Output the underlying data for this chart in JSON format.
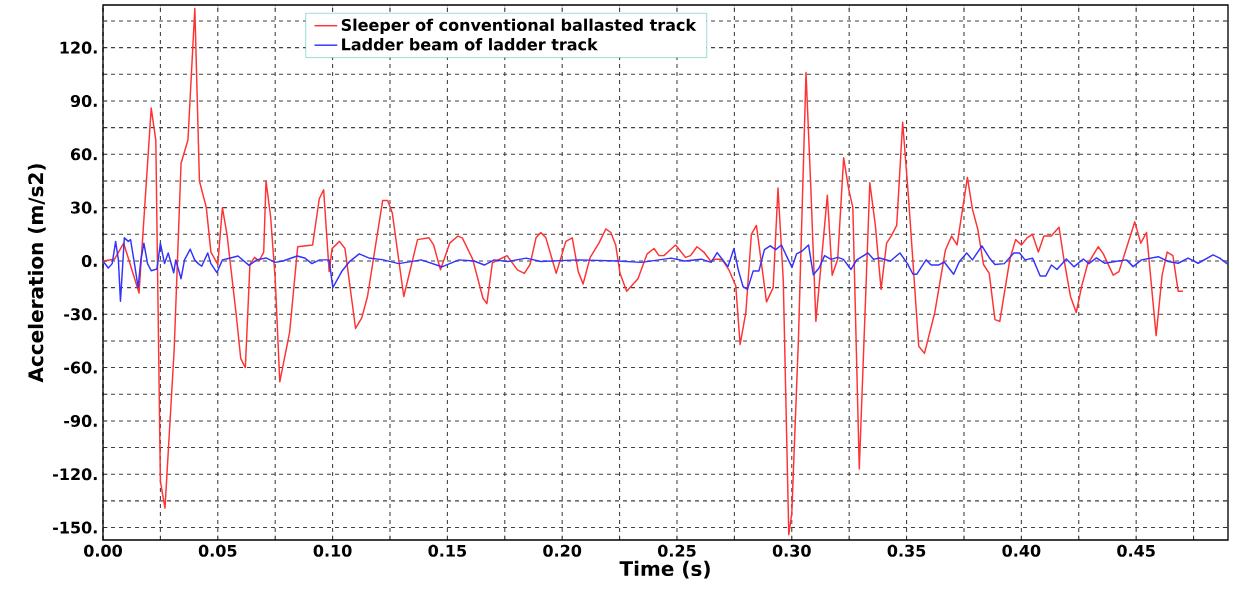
{
  "chart_data": {
    "type": "line",
    "xlabel": "Time (s)",
    "ylabel": "Acceleration (m/s2)",
    "xlim": [
      0,
      0.49
    ],
    "ylim": [
      -157,
      144
    ],
    "xticks": [
      {
        "value": 0,
        "label": "0.00"
      },
      {
        "value": 0.025,
        "label": null
      },
      {
        "value": 0.05,
        "label": "0.05"
      },
      {
        "value": 0.075,
        "label": null
      },
      {
        "value": 0.1,
        "label": "0.10"
      },
      {
        "value": 0.125,
        "label": null
      },
      {
        "value": 0.15,
        "label": "0.15"
      },
      {
        "value": 0.175,
        "label": null
      },
      {
        "value": 0.2,
        "label": "0.20"
      },
      {
        "value": 0.225,
        "label": null
      },
      {
        "value": 0.25,
        "label": "0.25"
      },
      {
        "value": 0.275,
        "label": null
      },
      {
        "value": 0.3,
        "label": "0.30"
      },
      {
        "value": 0.325,
        "label": null
      },
      {
        "value": 0.35,
        "label": "0.35"
      },
      {
        "value": 0.375,
        "label": null
      },
      {
        "value": 0.4,
        "label": "0.40"
      },
      {
        "value": 0.425,
        "label": null
      },
      {
        "value": 0.45,
        "label": "0.45"
      },
      {
        "value": 0.475,
        "label": null
      }
    ],
    "yticks": [
      {
        "value": 135,
        "label": null
      },
      {
        "value": 120,
        "label": "120."
      },
      {
        "value": 105,
        "label": null
      },
      {
        "value": 90,
        "label": "90."
      },
      {
        "value": 75,
        "label": null
      },
      {
        "value": 60,
        "label": "60."
      },
      {
        "value": 45,
        "label": null
      },
      {
        "value": 30,
        "label": "30."
      },
      {
        "value": 15,
        "label": null
      },
      {
        "value": 0,
        "label": "0."
      },
      {
        "value": -15,
        "label": null
      },
      {
        "value": -30,
        "label": "-30."
      },
      {
        "value": -45,
        "label": null
      },
      {
        "value": -60,
        "label": "-60."
      },
      {
        "value": -75,
        "label": null
      },
      {
        "value": -90,
        "label": "-90."
      },
      {
        "value": -105,
        "label": null
      },
      {
        "value": -120,
        "label": "-120."
      },
      {
        "value": -135,
        "label": null
      },
      {
        "value": -150,
        "label": "-150."
      }
    ],
    "grid": true,
    "legend": "top",
    "line_style": "solid",
    "series": [
      {
        "name": "Sleeper of conventional ballasted track",
        "color": "#ff3333",
        "x": [
          0,
          0.005,
          0.009,
          0.0157,
          0.021,
          0.023,
          0.025,
          0.027,
          0.031,
          0.034,
          0.037,
          0.04,
          0.042,
          0.045,
          0.047,
          0.05,
          0.052,
          0.054,
          0.058,
          0.06,
          0.062,
          0.064,
          0.066,
          0.068,
          0.07,
          0.071,
          0.073,
          0.075,
          0.077,
          0.0813,
          0.0848,
          0.0913,
          0.0942,
          0.0961,
          0.0985,
          0.0998,
          0.103,
          0.1054,
          0.11,
          0.1127,
          0.1152,
          0.1218,
          0.124,
          0.126,
          0.131,
          0.137,
          0.142,
          0.144,
          0.147,
          0.151,
          0.1546,
          0.1565,
          0.161,
          0.1655,
          0.1672,
          0.1696,
          0.176,
          0.1805,
          0.1835,
          0.186,
          0.1886,
          0.1907,
          0.1929,
          0.1974,
          0.2016,
          0.2044,
          0.207,
          0.2091,
          0.2122,
          0.216,
          0.219,
          0.2212,
          0.2233,
          0.2252,
          0.2281,
          0.233,
          0.237,
          0.24,
          0.2422,
          0.2443,
          0.2494,
          0.2537,
          0.2559,
          0.2587,
          0.2617,
          0.2646,
          0.2668,
          0.2696,
          0.2726,
          0.2756,
          0.2775,
          0.28,
          0.2824,
          0.2846,
          0.289,
          0.2919,
          0.294,
          0.2963,
          0.2987,
          0.3,
          0.3029,
          0.3062,
          0.3083,
          0.3105,
          0.3155,
          0.3176,
          0.32,
          0.3226,
          0.3247,
          0.3266,
          0.3294,
          0.334,
          0.3364,
          0.3389,
          0.3413,
          0.3433,
          0.3457,
          0.3483,
          0.351,
          0.3553,
          0.3578,
          0.3623,
          0.3669,
          0.3696,
          0.372,
          0.3765,
          0.3787,
          0.381,
          0.3835,
          0.386,
          0.3885,
          0.3906,
          0.395,
          0.3975,
          0.4,
          0.4025,
          0.4048,
          0.4074,
          0.4098,
          0.413,
          0.4164,
          0.4184,
          0.4214,
          0.4239,
          0.4263,
          0.4288,
          0.4335,
          0.4357,
          0.44,
          0.4425,
          0.4445,
          0.4494,
          0.452,
          0.4545,
          0.4587,
          0.4613,
          0.4635,
          0.466,
          0.4683,
          0.4704
        ],
        "values": [
          0,
          1,
          10,
          -18,
          86,
          68,
          -124,
          -139,
          -50,
          55,
          68,
          142,
          45,
          30,
          5,
          -2,
          30,
          15,
          -30,
          -55,
          -60,
          -2,
          2,
          0,
          5,
          45,
          25,
          -10,
          -68,
          -40,
          8,
          9,
          35,
          40,
          -6,
          7,
          11,
          7,
          -38,
          -32,
          -20,
          34,
          34,
          27,
          -20,
          12,
          13,
          9,
          -5,
          10,
          14,
          13,
          1,
          -21,
          -24,
          -1,
          3,
          -5,
          -7,
          -2,
          13,
          16,
          13,
          -7,
          11,
          13,
          -6,
          -13,
          2,
          10,
          18,
          16,
          9,
          -7,
          -17,
          -10,
          4,
          7,
          3,
          3,
          9,
          2,
          3,
          8,
          5,
          0,
          1,
          1,
          -5,
          -14,
          -47,
          -29,
          15,
          20,
          -23,
          -15,
          41,
          -11,
          -154,
          -142,
          -44,
          106,
          41,
          -34,
          37,
          -8,
          1,
          58,
          41,
          30,
          -117,
          44,
          20,
          -16,
          10,
          14,
          20,
          78,
          33,
          -48,
          -52,
          -29,
          6,
          14,
          9,
          47,
          29,
          18,
          -2,
          -7,
          -33,
          -34,
          1,
          12,
          9,
          13,
          15,
          5,
          14,
          14,
          19,
          2,
          -20,
          -29,
          -14,
          -2,
          8,
          4,
          -8,
          -6,
          2,
          22,
          10,
          16,
          -42,
          -8,
          5,
          3,
          -17,
          -17
        ]
      },
      {
        "name": "Ladder beam of ladder track",
        "color": "#3333ff",
        "x": [
          0,
          0.0023,
          0.004,
          0.0055,
          0.0067,
          0.0076,
          0.0093,
          0.011,
          0.012,
          0.0137,
          0.0153,
          0.0165,
          0.0178,
          0.0194,
          0.021,
          0.0235,
          0.025,
          0.0268,
          0.0284,
          0.0308,
          0.0317,
          0.034,
          0.0355,
          0.038,
          0.0399,
          0.0415,
          0.043,
          0.0456,
          0.047,
          0.0496,
          0.052,
          0.0555,
          0.0588,
          0.0636,
          0.0669,
          0.071,
          0.075,
          0.0784,
          0.0846,
          0.0878,
          0.091,
          0.0944,
          0.0985,
          0.1001,
          0.1042,
          0.1075,
          0.1116,
          0.1157,
          0.1222,
          0.1288,
          0.1386,
          0.1476,
          0.155,
          0.1616,
          0.1661,
          0.1704,
          0.1763,
          0.1843,
          0.1907,
          0.207,
          0.2243,
          0.2345,
          0.2475,
          0.2533,
          0.2606,
          0.2649,
          0.2675,
          0.2722,
          0.2748,
          0.2767,
          0.2788,
          0.2807,
          0.2832,
          0.2857,
          0.2881,
          0.2906,
          0.293,
          0.2955,
          0.298,
          0.3001,
          0.3021,
          0.3045,
          0.3073,
          0.3094,
          0.3119,
          0.3143,
          0.3171,
          0.32,
          0.3225,
          0.3258,
          0.3283,
          0.3332,
          0.3356,
          0.3381,
          0.343,
          0.3471,
          0.3504,
          0.3528,
          0.3544,
          0.3585,
          0.3607,
          0.3639,
          0.3664,
          0.3705,
          0.3729,
          0.3762,
          0.3787,
          0.3828,
          0.3861,
          0.3885,
          0.3926,
          0.3967,
          0.3992,
          0.4016,
          0.4049,
          0.4082,
          0.4106,
          0.4131,
          0.4155,
          0.4196,
          0.4229,
          0.427,
          0.4294,
          0.4327,
          0.4364,
          0.4422,
          0.4458,
          0.4487,
          0.4523,
          0.4596,
          0.464,
          0.4683,
          0.4726,
          0.477,
          0.4835,
          0.4864,
          0.49
        ],
        "values": [
          0,
          -4,
          -1.5,
          11,
          0.6,
          -22.7,
          13,
          11,
          12,
          -1.5,
          -15,
          0.6,
          10,
          -1.5,
          -5.5,
          -4.5,
          10,
          -1.5,
          4.5,
          -6.6,
          0.6,
          -10,
          0.6,
          6.6,
          0.6,
          -1.5,
          -3,
          4.5,
          -1.5,
          -6.6,
          0.6,
          1.7,
          2.8,
          -2.5,
          0.6,
          1.7,
          -0.8,
          0,
          2.8,
          1.7,
          -1.5,
          0.6,
          0.6,
          -15,
          -5.5,
          -0.2,
          4,
          1.7,
          0.6,
          -1.5,
          0.6,
          -3.3,
          0.6,
          0,
          -2.3,
          0.6,
          -0.3,
          1.6,
          -0.3,
          0.6,
          0,
          -0.8,
          1.6,
          0,
          1,
          -0.8,
          4.7,
          -3.2,
          7,
          -5,
          -14.5,
          -16,
          -5.6,
          -5.6,
          6.4,
          8.5,
          6.4,
          9,
          2,
          -3.6,
          4,
          5.6,
          9,
          -7.8,
          -4,
          3,
          0.9,
          2,
          0.9,
          -4.8,
          0.6,
          4.5,
          0.9,
          1.7,
          0,
          4.5,
          -1.5,
          -7.5,
          -7.5,
          0.6,
          -2.3,
          -2.3,
          -0.6,
          -7.5,
          -0.6,
          4.5,
          0.6,
          8.5,
          1.7,
          -2,
          -1.5,
          4.5,
          4.5,
          0.6,
          1.5,
          -8.5,
          -8.5,
          -2.3,
          -4.8,
          1.1,
          -3.3,
          1.1,
          -1.5,
          1.7,
          -1.3,
          0,
          0.6,
          -3.2,
          0.6,
          2.4,
          -0.3,
          -1.3,
          1.6,
          -1.3,
          3.4,
          1.6,
          -1.9
        ]
      }
    ]
  }
}
